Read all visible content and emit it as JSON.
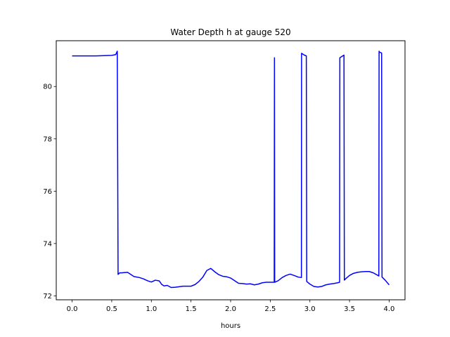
{
  "chart_data": {
    "type": "line",
    "title": "Water Depth h at gauge 520",
    "xlabel": "hours",
    "ylabel": "",
    "xlim": [
      -0.2,
      4.2
    ],
    "ylim": [
      71.85,
      81.75
    ],
    "xticks": [
      0.0,
      0.5,
      1.0,
      1.5,
      2.0,
      2.5,
      3.0,
      3.5,
      4.0
    ],
    "xtick_labels": [
      "0.0",
      "0.5",
      "1.0",
      "1.5",
      "2.0",
      "2.5",
      "3.0",
      "3.5",
      "4.0"
    ],
    "yticks": [
      72,
      74,
      76,
      78,
      80
    ],
    "ytick_labels": [
      "72",
      "74",
      "76",
      "78",
      "80"
    ],
    "grid": false,
    "line_color": "#0000ff",
    "series": [
      {
        "x": [
          0.0,
          0.3,
          0.5,
          0.55,
          0.57,
          0.58,
          0.6,
          0.62,
          0.66,
          0.7,
          0.74,
          0.78,
          0.85,
          0.9,
          0.95,
          1.0,
          1.05,
          1.1,
          1.13,
          1.16,
          1.2,
          1.25,
          1.3,
          1.4,
          1.5,
          1.55,
          1.6,
          1.65,
          1.7,
          1.75,
          1.8,
          1.85,
          1.9,
          1.95,
          2.0,
          2.05,
          2.1,
          2.15,
          2.2,
          2.25,
          2.3,
          2.35,
          2.4,
          2.45,
          2.5,
          2.55,
          2.553,
          2.556,
          2.6,
          2.65,
          2.7,
          2.75,
          2.8,
          2.85,
          2.893,
          2.895,
          2.93,
          2.955,
          2.96,
          3.0,
          3.05,
          3.1,
          3.15,
          3.2,
          3.25,
          3.3,
          3.35,
          3.375,
          3.378,
          3.43,
          3.435,
          3.45,
          3.5,
          3.55,
          3.6,
          3.65,
          3.7,
          3.75,
          3.8,
          3.87,
          3.873,
          3.876,
          3.905,
          3.91,
          3.95,
          4.0
        ],
        "y": [
          81.17,
          81.17,
          81.19,
          81.22,
          81.35,
          72.82,
          72.88,
          72.88,
          72.89,
          72.9,
          72.82,
          72.74,
          72.7,
          72.65,
          72.58,
          72.53,
          72.6,
          72.57,
          72.44,
          72.38,
          72.4,
          72.32,
          72.33,
          72.37,
          72.37,
          72.43,
          72.55,
          72.72,
          72.97,
          73.05,
          72.92,
          72.81,
          72.75,
          72.73,
          72.68,
          72.58,
          72.48,
          72.47,
          72.45,
          72.46,
          72.42,
          72.45,
          72.5,
          72.52,
          72.52,
          72.52,
          81.1,
          72.52,
          72.58,
          72.7,
          72.78,
          72.83,
          72.78,
          72.72,
          72.7,
          81.27,
          81.2,
          81.17,
          72.55,
          72.45,
          72.36,
          72.34,
          72.36,
          72.42,
          72.45,
          72.47,
          72.5,
          72.52,
          81.1,
          81.2,
          72.6,
          72.65,
          72.78,
          72.86,
          72.9,
          72.92,
          72.93,
          72.93,
          72.88,
          72.76,
          81.35,
          81.32,
          81.28,
          72.72,
          72.6,
          72.42
        ]
      }
    ]
  }
}
